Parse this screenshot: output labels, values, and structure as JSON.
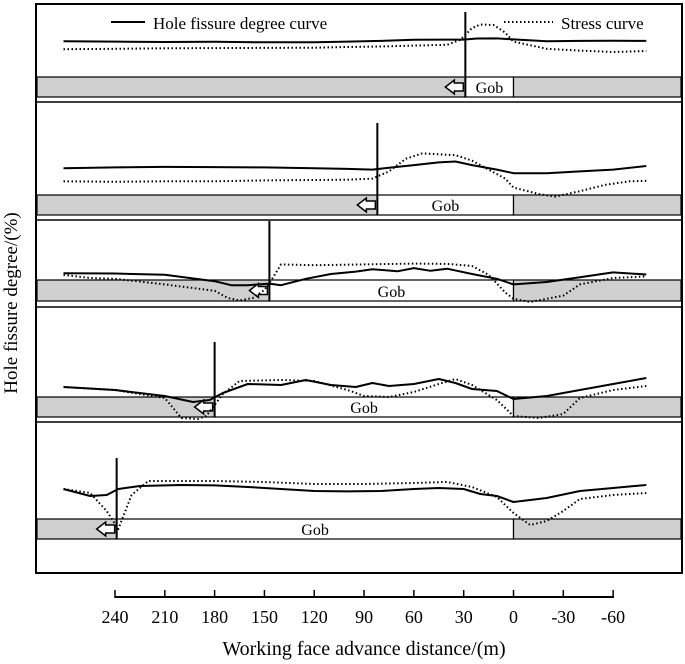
{
  "chart_data": {
    "type": "line",
    "legend": {
      "placement": "top",
      "entries": [
        {
          "label": "Hole fissure degree curve",
          "style": "solid"
        },
        {
          "label": "Stress curve",
          "style": "dotted"
        }
      ]
    },
    "ylabel": "Hole fissure degree/(%)",
    "xlabel": "Working face advance distance/(m)",
    "x_ticks": [
      240,
      210,
      180,
      150,
      120,
      90,
      60,
      30,
      0,
      -30,
      -60
    ],
    "xlim": [
      240,
      -60
    ],
    "grid": false,
    "stage_label": "Gob",
    "colors": {
      "gob_fill": "#cfcfcf",
      "line": "#000000"
    },
    "panels": [
      {
        "face_position": 29,
        "hole_fissure": [
          [
            271,
            0.18
          ],
          [
            240,
            0.2
          ],
          [
            210,
            0.22
          ],
          [
            180,
            0.21
          ],
          [
            150,
            0.24
          ],
          [
            120,
            0.24
          ],
          [
            100,
            0.2
          ],
          [
            80,
            0.16
          ],
          [
            60,
            0.1
          ],
          [
            40,
            0.09
          ],
          [
            30,
            0.09
          ],
          [
            22,
            0.03
          ],
          [
            10,
            0.02
          ],
          [
            0,
            0.08
          ],
          [
            -20,
            0.18
          ],
          [
            -40,
            0.16
          ],
          [
            -60,
            0.15
          ],
          [
            -80,
            0.16
          ]
        ],
        "stress": [
          [
            271,
            0.62
          ],
          [
            240,
            0.6
          ],
          [
            210,
            0.57
          ],
          [
            180,
            0.56
          ],
          [
            150,
            0.55
          ],
          [
            120,
            0.54
          ],
          [
            100,
            0.5
          ],
          [
            80,
            0.47
          ],
          [
            60,
            0.42
          ],
          [
            40,
            0.38
          ],
          [
            32,
            0.1
          ],
          [
            25,
            -0.55
          ],
          [
            20,
            -0.75
          ],
          [
            12,
            -0.72
          ],
          [
            5,
            -0.3
          ],
          [
            0,
            0.2
          ],
          [
            -20,
            0.6
          ],
          [
            -40,
            0.7
          ],
          [
            -60,
            0.78
          ],
          [
            -80,
            0.72
          ]
        ]
      },
      {
        "face_position": 82,
        "hole_fissure": [
          [
            271,
            0.12
          ],
          [
            240,
            0.08
          ],
          [
            210,
            0.05
          ],
          [
            180,
            0.06
          ],
          [
            150,
            0.08
          ],
          [
            120,
            0.12
          ],
          [
            100,
            0.16
          ],
          [
            85,
            0.2
          ],
          [
            75,
            0.1
          ],
          [
            60,
            -0.05
          ],
          [
            45,
            -0.2
          ],
          [
            35,
            -0.25
          ],
          [
            25,
            -0.05
          ],
          [
            10,
            0.2
          ],
          [
            0,
            0.4
          ],
          [
            -20,
            0.4
          ],
          [
            -40,
            0.3
          ],
          [
            -60,
            0.2
          ],
          [
            -80,
            0.0
          ]
        ],
        "stress": [
          [
            271,
            0.85
          ],
          [
            240,
            0.88
          ],
          [
            210,
            0.85
          ],
          [
            180,
            0.85
          ],
          [
            150,
            0.8
          ],
          [
            120,
            0.78
          ],
          [
            100,
            0.76
          ],
          [
            85,
            0.7
          ],
          [
            75,
            0.3
          ],
          [
            65,
            -0.4
          ],
          [
            55,
            -0.7
          ],
          [
            45,
            -0.65
          ],
          [
            35,
            -0.6
          ],
          [
            25,
            -0.3
          ],
          [
            15,
            0.2
          ],
          [
            5,
            0.7
          ],
          [
            0,
            1.2
          ],
          [
            -15,
            1.55
          ],
          [
            -25,
            1.7
          ],
          [
            -40,
            1.4
          ],
          [
            -55,
            1.05
          ],
          [
            -70,
            0.85
          ],
          [
            -80,
            0.82
          ]
        ]
      },
      {
        "face_position": 147,
        "hole_fissure": [
          [
            271,
            0.2
          ],
          [
            240,
            0.22
          ],
          [
            210,
            0.3
          ],
          [
            180,
            0.7
          ],
          [
            170,
            0.95
          ],
          [
            160,
            0.95
          ],
          [
            147,
            0.85
          ],
          [
            140,
            0.95
          ],
          [
            125,
            0.55
          ],
          [
            110,
            0.25
          ],
          [
            95,
            0.1
          ],
          [
            85,
            -0.05
          ],
          [
            70,
            0.08
          ],
          [
            60,
            -0.12
          ],
          [
            50,
            0.05
          ],
          [
            40,
            -0.08
          ],
          [
            25,
            0.25
          ],
          [
            10,
            0.55
          ],
          [
            0,
            0.9
          ],
          [
            -20,
            0.75
          ],
          [
            -40,
            0.45
          ],
          [
            -60,
            0.15
          ],
          [
            -80,
            0.28
          ]
        ],
        "stress": [
          [
            271,
            0.3
          ],
          [
            255,
            0.5
          ],
          [
            240,
            0.55
          ],
          [
            210,
            0.9
          ],
          [
            180,
            1.3
          ],
          [
            172,
            1.75
          ],
          [
            165,
            1.9
          ],
          [
            157,
            1.75
          ],
          [
            150,
            1.25
          ],
          [
            145,
            0.5
          ],
          [
            140,
            -0.35
          ],
          [
            120,
            -0.3
          ],
          [
            90,
            -0.35
          ],
          [
            60,
            -0.4
          ],
          [
            40,
            -0.38
          ],
          [
            25,
            -0.25
          ],
          [
            15,
            0.3
          ],
          [
            5,
            1.4
          ],
          [
            0,
            1.8
          ],
          [
            -10,
            2.0
          ],
          [
            -20,
            1.8
          ],
          [
            -30,
            1.6
          ],
          [
            -40,
            0.9
          ],
          [
            -60,
            0.5
          ],
          [
            -80,
            0.4
          ]
        ]
      },
      {
        "face_position": 180,
        "hole_fissure": [
          [
            271,
            0.25
          ],
          [
            240,
            0.4
          ],
          [
            210,
            0.7
          ],
          [
            193,
            1.0
          ],
          [
            183,
            0.9
          ],
          [
            175,
            0.55
          ],
          [
            160,
            0.1
          ],
          [
            140,
            0.15
          ],
          [
            125,
            -0.1
          ],
          [
            110,
            0.15
          ],
          [
            95,
            0.25
          ],
          [
            85,
            0.05
          ],
          [
            75,
            0.2
          ],
          [
            60,
            0.1
          ],
          [
            45,
            -0.15
          ],
          [
            35,
            0.05
          ],
          [
            25,
            0.35
          ],
          [
            10,
            0.45
          ],
          [
            0,
            0.85
          ],
          [
            -20,
            0.7
          ],
          [
            -40,
            0.4
          ],
          [
            -60,
            0.1
          ],
          [
            -80,
            -0.2
          ]
        ],
        "stress": [
          [
            271,
            0.25
          ],
          [
            240,
            0.4
          ],
          [
            210,
            0.8
          ],
          [
            200,
            1.8
          ],
          [
            190,
            1.85
          ],
          [
            185,
            1.7
          ],
          [
            175,
            0.6
          ],
          [
            165,
            -0.05
          ],
          [
            140,
            -0.1
          ],
          [
            120,
            -0.05
          ],
          [
            100,
            0.4
          ],
          [
            90,
            0.7
          ],
          [
            75,
            0.75
          ],
          [
            60,
            0.5
          ],
          [
            45,
            0.1
          ],
          [
            35,
            -0.15
          ],
          [
            25,
            0.15
          ],
          [
            10,
            0.9
          ],
          [
            0,
            1.7
          ],
          [
            -15,
            1.8
          ],
          [
            -30,
            1.6
          ],
          [
            -40,
            0.8
          ],
          [
            -60,
            0.4
          ],
          [
            -80,
            0.2
          ]
        ]
      },
      {
        "face_position": 239,
        "hole_fissure": [
          [
            271,
            0.1
          ],
          [
            255,
            0.45
          ],
          [
            245,
            0.4
          ],
          [
            238,
            0.1
          ],
          [
            225,
            -0.05
          ],
          [
            200,
            -0.1
          ],
          [
            180,
            -0.08
          ],
          [
            160,
            0.0
          ],
          [
            140,
            0.1
          ],
          [
            120,
            0.2
          ],
          [
            100,
            0.22
          ],
          [
            80,
            0.2
          ],
          [
            60,
            0.1
          ],
          [
            45,
            0.05
          ],
          [
            30,
            0.1
          ],
          [
            20,
            0.35
          ],
          [
            10,
            0.45
          ],
          [
            0,
            0.75
          ],
          [
            -20,
            0.55
          ],
          [
            -40,
            0.2
          ],
          [
            -60,
            0.05
          ],
          [
            -80,
            -0.1
          ]
        ],
        "stress": [
          [
            271,
            0.1
          ],
          [
            255,
            0.3
          ],
          [
            245,
            1.2
          ],
          [
            238,
            2.1
          ],
          [
            230,
            0.4
          ],
          [
            220,
            -0.3
          ],
          [
            200,
            -0.3
          ],
          [
            180,
            -0.3
          ],
          [
            150,
            -0.25
          ],
          [
            120,
            -0.15
          ],
          [
            90,
            -0.15
          ],
          [
            60,
            -0.2
          ],
          [
            40,
            -0.25
          ],
          [
            25,
            0.0
          ],
          [
            10,
            0.5
          ],
          [
            0,
            1.3
          ],
          [
            -10,
            1.9
          ],
          [
            -20,
            1.7
          ],
          [
            -30,
            1.2
          ],
          [
            -40,
            0.6
          ],
          [
            -60,
            0.4
          ],
          [
            -80,
            0.3
          ]
        ]
      }
    ]
  }
}
